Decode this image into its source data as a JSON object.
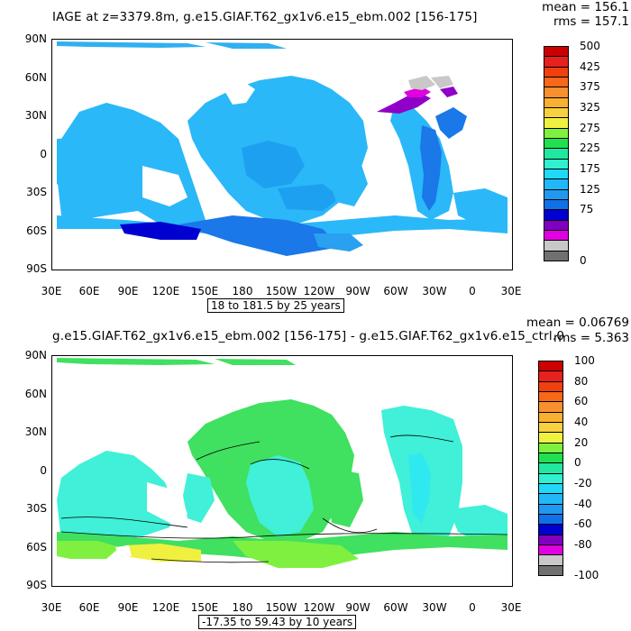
{
  "top": {
    "title": "IAGE at z=3379.8m, g.e15.GIAF.T62_gx1v6.e15_ebm.002 [156-175]",
    "mean": "mean = 156.1",
    "rms": "rms = 157.1",
    "range": "18 to 181.5 by 25 years",
    "lat_labels": [
      "90N",
      "60N",
      "30N",
      "0",
      "30S",
      "60S",
      "90S"
    ],
    "lon_labels": [
      "30E",
      "60E",
      "90E",
      "120E",
      "150E",
      "180",
      "150W",
      "120W",
      "90W",
      "60W",
      "30W",
      "0",
      "30E"
    ],
    "colorbar": {
      "labels": [
        "500",
        "425",
        "375",
        "325",
        "275",
        "225",
        "175",
        "125",
        "75",
        "0"
      ],
      "colors": [
        "#cc0000",
        "#e82020",
        "#f04010",
        "#f86818",
        "#f89030",
        "#f8b030",
        "#f8d040",
        "#f0f040",
        "#80f040",
        "#20e050",
        "#20e8a0",
        "#30f0d0",
        "#20d8f8",
        "#20b8f8",
        "#2098f0",
        "#1070e8",
        "#0000d0",
        "#8000c0",
        "#e000e0",
        "#c8c8c8",
        "#707070"
      ]
    }
  },
  "bottom": {
    "title": "g.e15.GIAF.T62_gx1v6.e15_ebm.002 [156-175] - g.e15.GIAF.T62_gx1v6.e15_ctrl.0",
    "mean": "mean = 0.06769",
    "rms": "rms = 5.363",
    "range": "-17.35 to 59.43 by 10 years",
    "lat_labels": [
      "90N",
      "60N",
      "30N",
      "0",
      "30S",
      "60S",
      "90S"
    ],
    "lon_labels": [
      "30E",
      "60E",
      "90E",
      "120E",
      "150E",
      "180",
      "150W",
      "120W",
      "90W",
      "60W",
      "30W",
      "0",
      "30E"
    ],
    "colorbar": {
      "labels": [
        "100",
        "80",
        "60",
        "40",
        "20",
        "0",
        "-20",
        "-40",
        "-60",
        "-80",
        "-100"
      ],
      "colors": [
        "#cc0000",
        "#e82020",
        "#f04010",
        "#f86818",
        "#f89030",
        "#f8b030",
        "#f8d040",
        "#f0f040",
        "#80f040",
        "#20e050",
        "#20e8a0",
        "#30f0d0",
        "#20d8f8",
        "#20b8f8",
        "#2098f0",
        "#1070e8",
        "#0000d0",
        "#8000c0",
        "#e000e0",
        "#c8c8c8",
        "#707070"
      ]
    }
  }
}
